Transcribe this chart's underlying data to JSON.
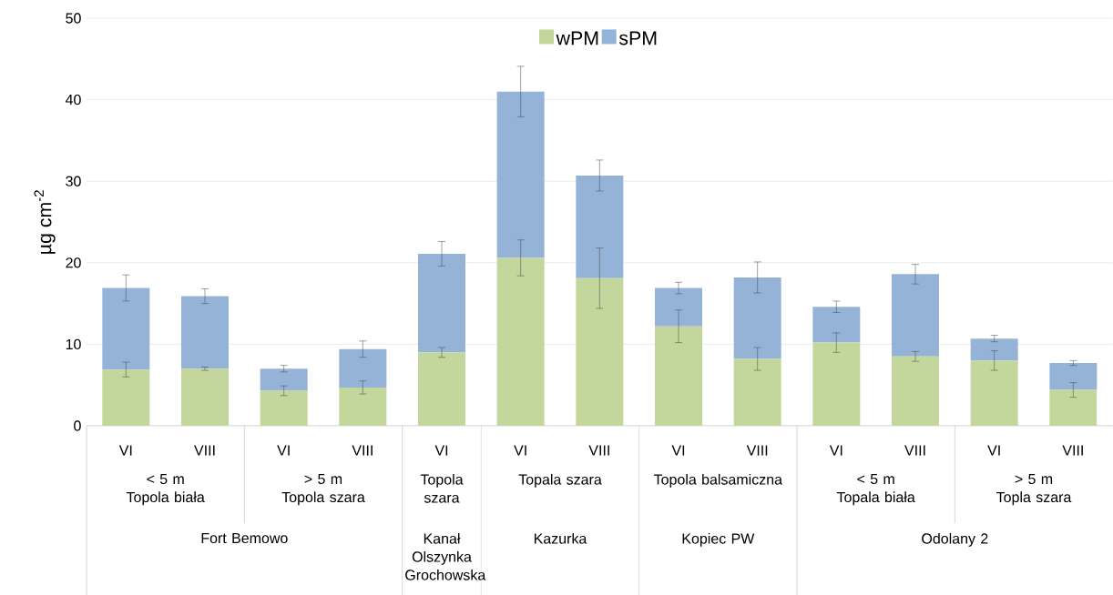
{
  "chart_data": {
    "type": "bar",
    "stacked": true,
    "ylabel": "µg cm$^{-2}$",
    "categories": [
      "VI",
      "VIII",
      "VI",
      "VIII",
      "VI",
      "VI",
      "VIII",
      "VI",
      "VIII",
      "VI",
      "VIII",
      "VI",
      "VIII"
    ],
    "series": [
      {
        "name": "wPM",
        "color": "#c3d69b",
        "values": [
          6.9,
          7.0,
          4.3,
          4.7,
          9.0,
          20.6,
          18.1,
          12.2,
          8.2,
          10.2,
          8.5,
          8.0,
          4.4
        ],
        "errors": [
          0.9,
          0.2,
          0.6,
          0.8,
          0.6,
          2.2,
          3.7,
          2.0,
          1.4,
          1.2,
          0.6,
          1.2,
          0.9
        ]
      },
      {
        "name": "sPM",
        "color": "#95b3d7",
        "values": [
          10.0,
          8.9,
          2.7,
          4.7,
          12.1,
          20.4,
          12.6,
          4.7,
          10.0,
          4.4,
          10.1,
          2.7,
          3.3
        ],
        "errors": [
          1.6,
          0.9,
          0.4,
          1.0,
          1.5,
          3.1,
          1.9,
          0.7,
          1.9,
          0.7,
          1.2,
          0.4,
          0.3
        ]
      }
    ],
    "annotations": [
      "< 5 m",
      "Topola biała",
      "> 5 m",
      "Topola szara",
      "Topola szara",
      "Topala szara",
      "Topola balsamiczna",
      "< 5 m",
      "Topala biała",
      "> 5 m",
      "Topla szara",
      "Fort Bemowo",
      "Kanał Olszynka Grochowska",
      "Kazurka",
      "Kopiec PW",
      "Odolany 2"
    ],
    "ylim": [
      0,
      50
    ],
    "yticks": [
      0,
      10,
      20,
      30,
      40,
      50
    ],
    "grid": "y",
    "legend": "top"
  }
}
